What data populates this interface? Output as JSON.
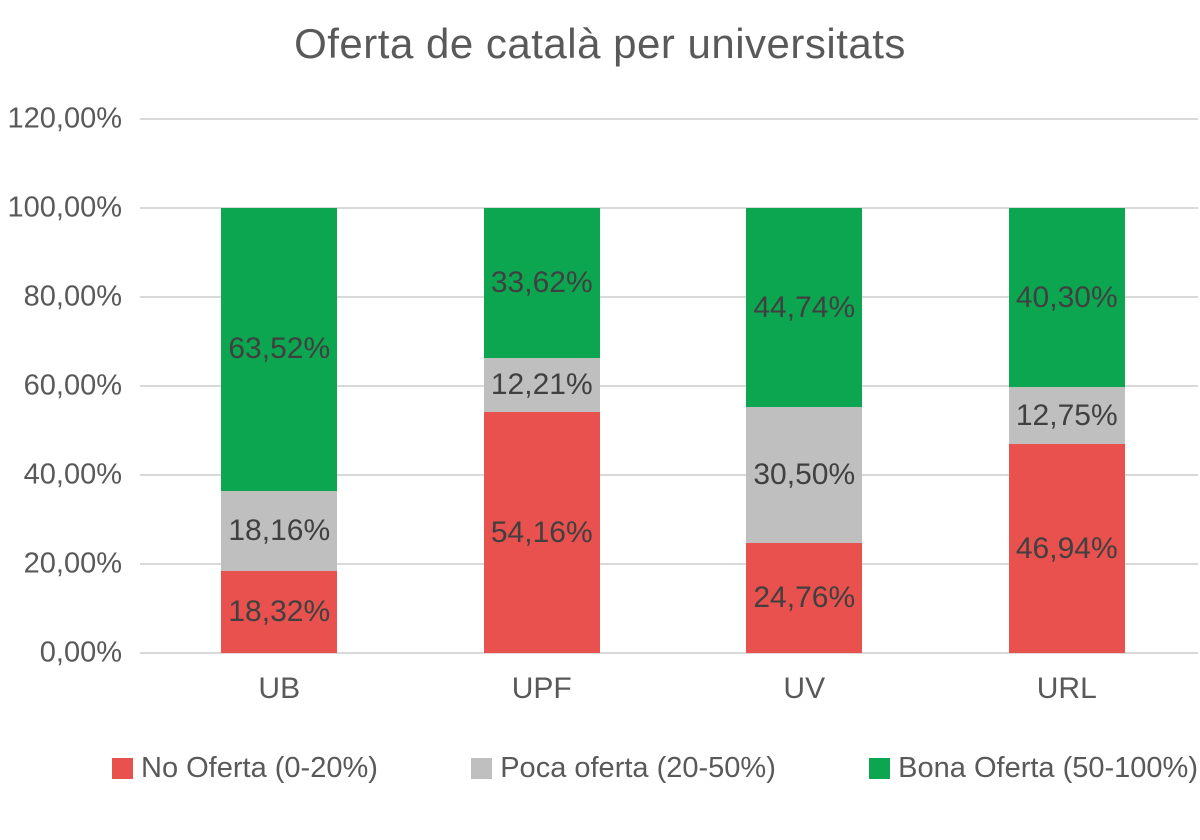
{
  "chart_data": {
    "type": "bar",
    "variant": "stacked-column",
    "title": "Oferta de català per universitats",
    "categories": [
      "UB",
      "UPF",
      "UV",
      "URL"
    ],
    "series": [
      {
        "name": "No Oferta (0-20%)",
        "color": "#e8514d",
        "values": [
          18.32,
          54.16,
          24.76,
          46.94
        ],
        "labels": [
          "18,32%",
          "54,16%",
          "24,76%",
          "46,94%"
        ]
      },
      {
        "name": "Poca oferta (20-50%)",
        "color": "#bfbfbf",
        "values": [
          18.16,
          12.21,
          30.5,
          12.75
        ],
        "labels": [
          "18,16%",
          "12,21%",
          "30,50%",
          "12,75%"
        ]
      },
      {
        "name": "Bona Oferta (50-100%)",
        "color": "#0ca650",
        "values": [
          63.52,
          33.62,
          44.74,
          40.3
        ],
        "labels": [
          "63,52%",
          "33,62%",
          "44,74%",
          "40,30%"
        ]
      }
    ],
    "y_ticks": [
      "0,00%",
      "20,00%",
      "40,00%",
      "60,00%",
      "80,00%",
      "100,00%",
      "120,00%"
    ],
    "ylim": [
      0,
      120
    ],
    "grid": true,
    "legend_position": "bottom",
    "colors": {
      "title_text": "#595959",
      "axis_text": "#595959",
      "data_label_text": "#404040",
      "gridline": "#d9d9d9",
      "background": "#ffffff"
    }
  }
}
